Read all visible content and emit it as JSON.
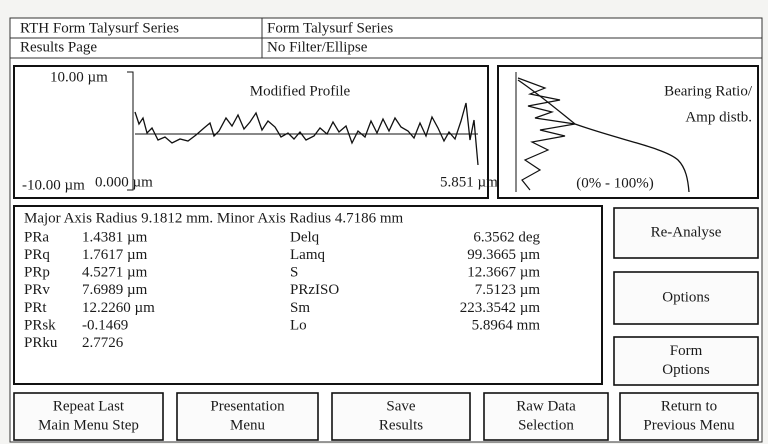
{
  "header": {
    "rows": [
      [
        "RTH Form Talysurf Series",
        "Form Talysurf Series"
      ],
      [
        "Results Page",
        "No Filter/Ellipse"
      ]
    ]
  },
  "profile_panel": {
    "title": "Modified Profile",
    "y_top": "10.00 µm",
    "y_bottom": "-10.00 µm",
    "x_start": "0.000 µm",
    "x_end": "5.851 µm"
  },
  "bearing_panel": {
    "title_lines": [
      "Bearing Ratio/",
      "Amp distb."
    ],
    "range": "(0% - 100%)"
  },
  "results": {
    "axes": "Major Axis Radius  9.1812 mm.  Minor Axis Radius  4.7186 mm",
    "left": [
      [
        "PRa",
        "1.4381 µm"
      ],
      [
        "PRq",
        "1.7617 µm"
      ],
      [
        "PRp",
        "4.5271 µm"
      ],
      [
        "PRv",
        "7.6989 µm"
      ],
      [
        "PRt",
        "12.2260 µm"
      ],
      [
        "PRsk",
        "-0.1469"
      ],
      [
        "PRku",
        "2.7726"
      ]
    ],
    "right": [
      [
        "Delq",
        "6.3562 deg"
      ],
      [
        "Lamq",
        "99.3665 µm"
      ],
      [
        "S",
        "12.3667 µm"
      ],
      [
        "PRzISO",
        "7.5123 µm"
      ],
      [
        "Sm",
        "223.3542 µm"
      ],
      [
        "Lo",
        "5.8964 mm"
      ]
    ]
  },
  "side_buttons": [
    [
      "Re-Analyse"
    ],
    [
      "Options"
    ],
    [
      "Form",
      "Options"
    ]
  ],
  "bottom_buttons": [
    [
      "Repeat Last",
      "Main Menu Step"
    ],
    [
      "Presentation",
      "Menu"
    ],
    [
      "Save",
      "Results"
    ],
    [
      "Raw Data",
      "Selection"
    ],
    [
      "Return to",
      "Previous Menu"
    ]
  ]
}
